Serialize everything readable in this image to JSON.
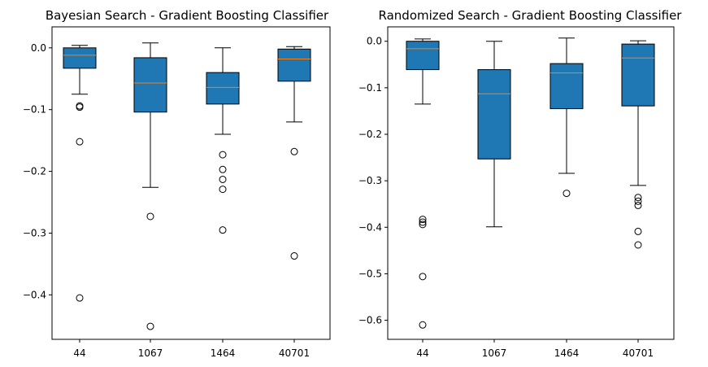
{
  "chart_data": [
    {
      "type": "box",
      "title": "Bayesian Search - Gradient Boosting Classifier",
      "categories": [
        "44",
        "1067",
        "1464",
        "40701"
      ],
      "ylim": [
        -0.472,
        0.034
      ],
      "yticks": [
        0.0,
        -0.1,
        -0.2,
        -0.3,
        -0.4
      ],
      "ytick_labels": [
        "0.0",
        "−0.1",
        "−0.2",
        "−0.3",
        "−0.4"
      ],
      "grid": false,
      "box_color": "#1f77b4",
      "median_color": "#ff7f0e",
      "boxes": [
        {
          "whislo": -0.075,
          "q1": -0.033,
          "med": -0.012,
          "q3": 0.0,
          "whishi": 0.004,
          "fliers": [
            -0.094,
            -0.096,
            -0.152,
            -0.405
          ]
        },
        {
          "whislo": -0.226,
          "q1": -0.104,
          "med": -0.057,
          "q3": -0.016,
          "whishi": 0.008,
          "fliers": [
            -0.273,
            -0.451
          ]
        },
        {
          "whislo": -0.14,
          "q1": -0.091,
          "med": -0.064,
          "q3": -0.04,
          "whishi": 0.0,
          "fliers": [
            -0.173,
            -0.197,
            -0.213,
            -0.229,
            -0.295
          ]
        },
        {
          "whislo": -0.12,
          "q1": -0.054,
          "med": -0.018,
          "q3": -0.002,
          "whishi": 0.002,
          "fliers": [
            -0.168,
            -0.337
          ]
        }
      ]
    },
    {
      "type": "box",
      "title": "Randomized Search -  Gradient Boosting Classifier",
      "categories": [
        "44",
        "1067",
        "1464",
        "40701"
      ],
      "ylim": [
        -0.641,
        0.031
      ],
      "yticks": [
        0.0,
        -0.1,
        -0.2,
        -0.3,
        -0.4,
        -0.5,
        -0.6
      ],
      "ytick_labels": [
        "0.0",
        "−0.1",
        "−0.2",
        "−0.3",
        "−0.4",
        "−0.5",
        "−0.6"
      ],
      "grid": false,
      "box_color": "#1f77b4",
      "median_color": "#ff7f0e",
      "boxes": [
        {
          "whislo": -0.135,
          "q1": -0.061,
          "med": -0.016,
          "q3": 0.0,
          "whishi": 0.005,
          "fliers": [
            -0.383,
            -0.389,
            -0.394,
            -0.506,
            -0.61
          ]
        },
        {
          "whislo": -0.399,
          "q1": -0.253,
          "med": -0.113,
          "q3": -0.061,
          "whishi": 0.0,
          "fliers": []
        },
        {
          "whislo": -0.284,
          "q1": -0.145,
          "med": -0.068,
          "q3": -0.048,
          "whishi": 0.007,
          "fliers": [
            -0.327
          ]
        },
        {
          "whislo": -0.31,
          "q1": -0.139,
          "med": -0.036,
          "q3": -0.006,
          "whishi": 0.001,
          "fliers": [
            -0.336,
            -0.344,
            -0.353,
            -0.409,
            -0.438
          ]
        }
      ]
    }
  ]
}
